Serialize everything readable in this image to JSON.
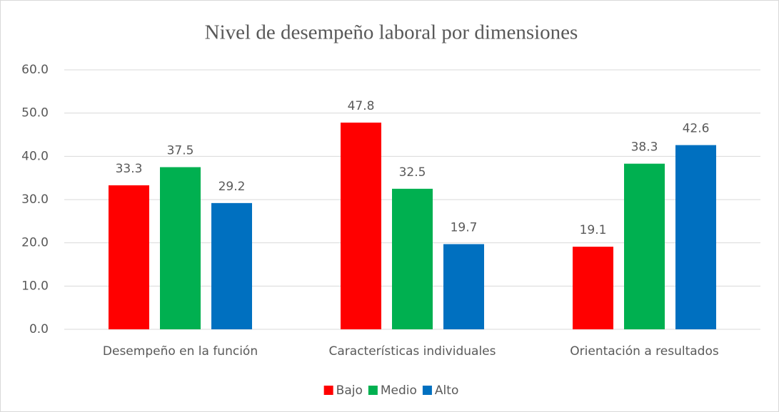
{
  "chart_data": {
    "type": "bar",
    "title": "Nivel de desempeño laboral por dimensiones",
    "categories": [
      "Desempeño en la función",
      "Características individuales",
      "Orientación a resultados"
    ],
    "series": [
      {
        "name": "Bajo",
        "color": "#ff0000",
        "values": [
          33.3,
          47.8,
          19.1
        ]
      },
      {
        "name": "Medio",
        "color": "#00b050",
        "values": [
          37.5,
          32.5,
          38.3
        ]
      },
      {
        "name": "Alto",
        "color": "#0070c0",
        "values": [
          29.2,
          19.7,
          42.6
        ]
      }
    ],
    "ylim": [
      0,
      60
    ],
    "yticks": [
      {
        "value": 0,
        "label": "0.0"
      },
      {
        "value": 10,
        "label": "10.0"
      },
      {
        "value": 20,
        "label": "20.0"
      },
      {
        "value": 30,
        "label": "30.0"
      },
      {
        "value": 40,
        "label": "40.0"
      },
      {
        "value": 50,
        "label": "50.0"
      },
      {
        "value": 60,
        "label": "60.0"
      }
    ],
    "grid": true,
    "legend": "bottom"
  }
}
